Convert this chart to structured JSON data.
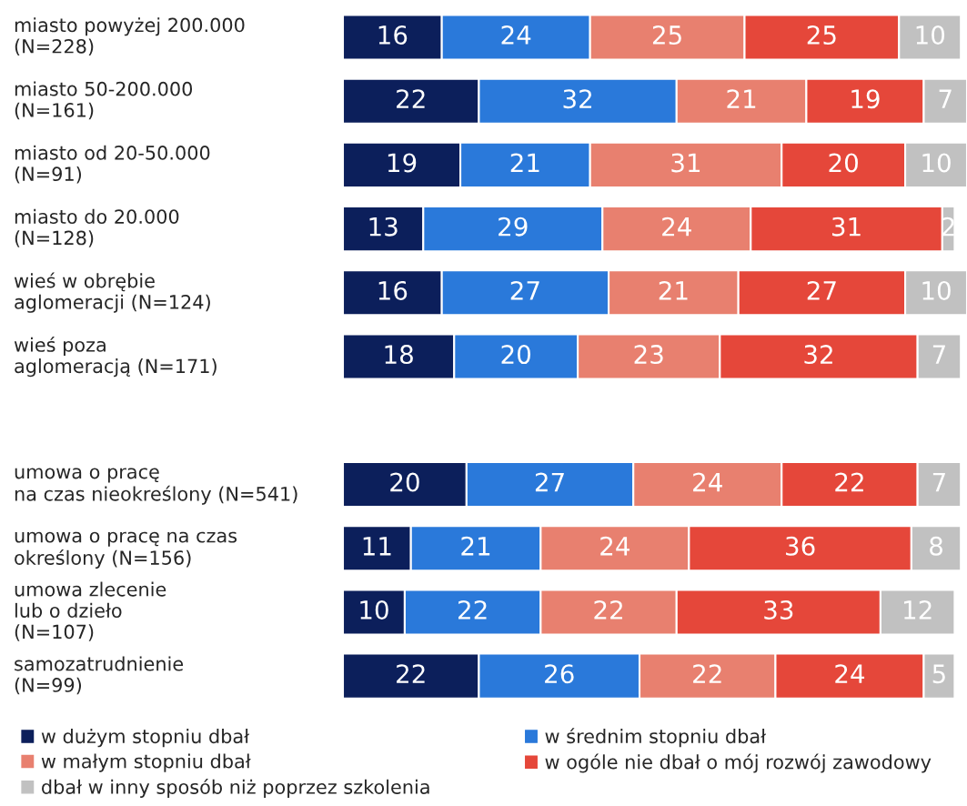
{
  "chart_data": {
    "type": "bar",
    "orientation": "horizontal",
    "stacked": true,
    "data_labels": true,
    "legend": "bottom",
    "tick_labels": false,
    "categories": [
      "miasto powyżej 200.000\n(N=228)",
      "miasto 50-200.000\n(N=161)",
      "miasto od 20-50.000\n(N=91)",
      "miasto do 20.000\n(N=128)",
      "wieś w obrębie\naglomeracji (N=124)",
      "wieś poza\naglomeracją (N=171)",
      null,
      "umowa o pracę\nna czas nieokreślony (N=541)",
      "umowa o pracę na czas\nokreślony (N=156)",
      "umowa zlecenie\nlub o dzieło\n(N=107)",
      "samozatrudnienie\n(N=99)"
    ],
    "series": [
      {
        "name": "w dużym stopniu dbał",
        "color": "#0c1f5b",
        "values": [
          16,
          22,
          19,
          13,
          16,
          18,
          null,
          20,
          11,
          10,
          22
        ]
      },
      {
        "name": "w średnim stopniu dbał",
        "color": "#2a79da",
        "values": [
          24,
          32,
          21,
          29,
          27,
          20,
          null,
          27,
          21,
          22,
          26
        ]
      },
      {
        "name": "w małym stopniu dbał",
        "color": "#e8806f",
        "values": [
          25,
          21,
          31,
          24,
          21,
          23,
          null,
          24,
          24,
          22,
          22
        ]
      },
      {
        "name": "w ogóle nie dbał o mój rozwój zawodowy",
        "color": "#e5473a",
        "values": [
          25,
          19,
          20,
          31,
          27,
          32,
          null,
          22,
          36,
          33,
          24
        ]
      },
      {
        "name": "dbał w inny sposób niż poprzez szkolenia",
        "color": "#c1c1c1",
        "values": [
          10,
          7,
          10,
          2,
          10,
          7,
          null,
          7,
          8,
          12,
          5
        ]
      }
    ]
  }
}
